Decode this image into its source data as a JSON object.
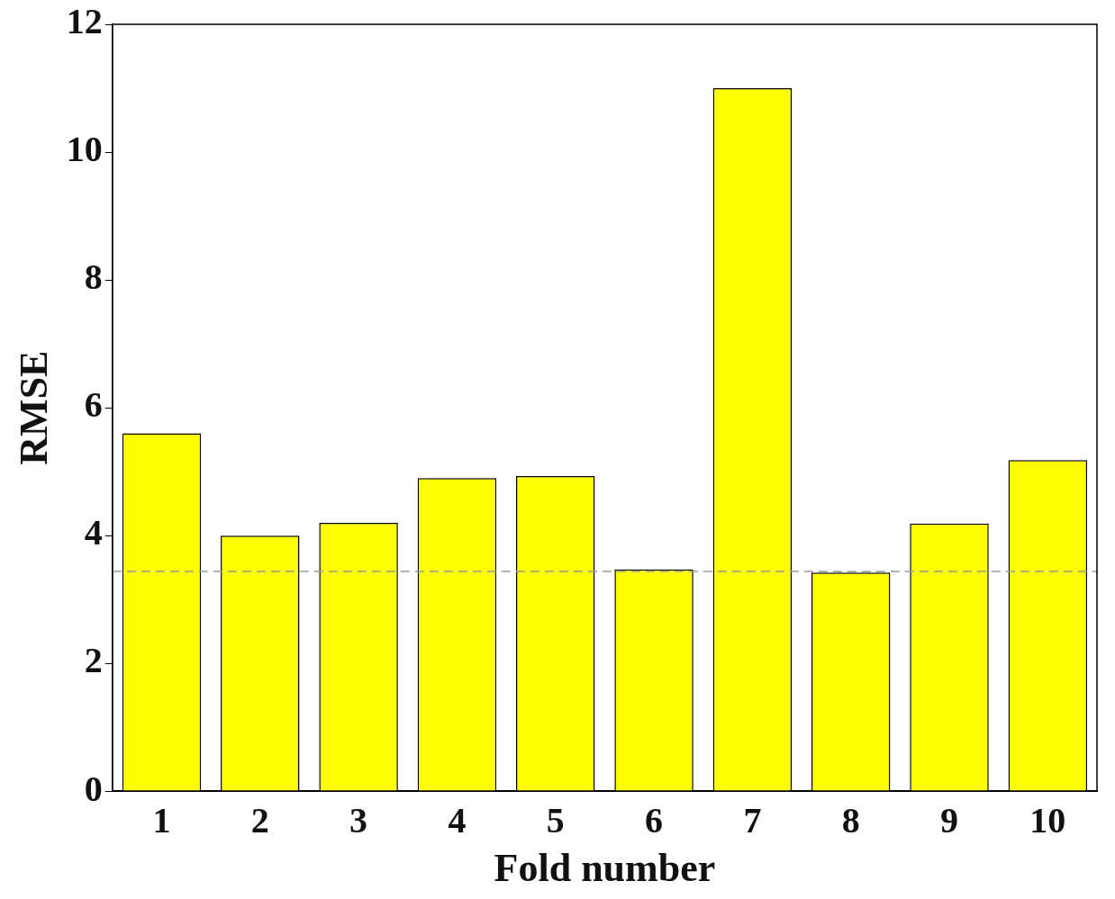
{
  "chart_data": {
    "type": "bar",
    "xlabel": "Fold number",
    "ylabel": "RMSE",
    "categories": [
      "1",
      "2",
      "3",
      "4",
      "5",
      "6",
      "7",
      "8",
      "9",
      "10"
    ],
    "values": [
      5.6,
      4.0,
      4.2,
      4.9,
      4.93,
      3.47,
      11.0,
      3.42,
      4.19,
      5.18
    ],
    "color": "#ffff00",
    "ylim": [
      0,
      12
    ],
    "yticks": [
      0,
      2,
      4,
      6,
      8,
      10,
      12
    ],
    "ref_lines": [
      {
        "axis": "y",
        "value": 3.44,
        "color": "#999999",
        "line_style": "dashed"
      }
    ],
    "grid": false,
    "legend": false
  }
}
